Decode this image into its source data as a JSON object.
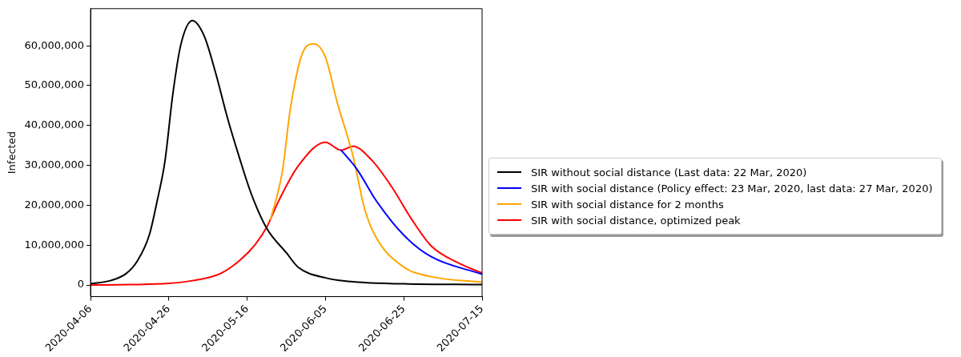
{
  "chart_data": {
    "type": "line",
    "ylabel": "Infected",
    "xlim": [
      "2020-04-06",
      "2020-07-15"
    ],
    "xticks": [
      "2020-04-06",
      "2020-04-26",
      "2020-05-16",
      "2020-06-05",
      "2020-06-25",
      "2020-07-15"
    ],
    "ylim": [
      -2900000,
      69300000
    ],
    "yticks": [
      {
        "value": 0,
        "label": "0"
      },
      {
        "value": 10000000,
        "label": "10,000,000"
      },
      {
        "value": 20000000,
        "label": "20,000,000"
      },
      {
        "value": 30000000,
        "label": "30,000,000"
      },
      {
        "value": 40000000,
        "label": "40,000,000"
      },
      {
        "value": 50000000,
        "label": "50,000,000"
      },
      {
        "value": 60000000,
        "label": "60,000,000"
      }
    ],
    "grid": false,
    "legend": "right",
    "marker": "none",
    "line_style": "solid",
    "series": [
      {
        "name": "SIR without social distance (Last data: 22 Mar, 2020)",
        "color": "#000000",
        "x": [
          "2020-04-06",
          "2020-04-11",
          "2020-04-15",
          "2020-04-18",
          "2020-04-21",
          "2020-04-23",
          "2020-04-25",
          "2020-04-27",
          "2020-04-29",
          "2020-05-02",
          "2020-05-05",
          "2020-05-08",
          "2020-05-11",
          "2020-05-14",
          "2020-05-17",
          "2020-05-21",
          "2020-05-26",
          "2020-05-29",
          "2020-06-05",
          "2020-06-15",
          "2020-06-25",
          "2020-07-15"
        ],
        "values": [
          300000,
          1100000,
          2800000,
          6100000,
          12500000,
          21000000,
          31000000,
          47700000,
          60000000,
          66300000,
          62500000,
          53000000,
          41800000,
          32000000,
          23000000,
          14200000,
          8100000,
          4500000,
          1800000,
          600000,
          300000,
          100000
        ]
      },
      {
        "name": "SIR with social distance (Policy effect: 23 Mar, 2020, last data: 27 Mar, 2020)",
        "color": "#0000ff",
        "x": [
          "2020-06-09",
          "2020-06-13",
          "2020-06-18",
          "2020-06-25",
          "2020-07-02",
          "2020-07-15"
        ],
        "values": [
          33800000,
          29100000,
          21100000,
          12500000,
          7100000,
          2700000
        ]
      },
      {
        "name": "SIR with social distance for 2 months",
        "color": "#ffa500",
        "x": [
          "2020-05-22",
          "2020-05-25",
          "2020-05-27",
          "2020-05-30",
          "2020-06-02",
          "2020-06-05",
          "2020-06-08",
          "2020-06-12",
          "2020-06-15",
          "2020-06-18",
          "2020-06-25",
          "2020-07-02",
          "2020-07-15"
        ],
        "values": [
          16500000,
          28500000,
          44000000,
          57800000,
          60500000,
          57100000,
          45800000,
          32500000,
          19100000,
          11800000,
          4500000,
          2100000,
          700000
        ]
      },
      {
        "name": "SIR with social distance, optimized peak",
        "color": "#ff0000",
        "x": [
          "2020-04-06",
          "2020-04-16",
          "2020-04-26",
          "2020-05-02",
          "2020-05-09",
          "2020-05-14",
          "2020-05-18",
          "2020-05-21",
          "2020-05-24",
          "2020-05-29",
          "2020-06-05",
          "2020-06-09",
          "2020-06-12",
          "2020-06-17",
          "2020-06-22",
          "2020-06-27",
          "2020-07-02",
          "2020-07-09",
          "2020-07-15"
        ],
        "values": [
          0,
          100000,
          400000,
          1100000,
          2800000,
          6100000,
          10100000,
          14500000,
          21000000,
          29800000,
          35800000,
          33800000,
          34800000,
          31100000,
          24500000,
          16500000,
          9800000,
          5500000,
          3000000
        ]
      }
    ]
  }
}
